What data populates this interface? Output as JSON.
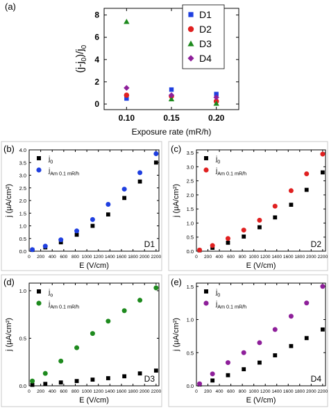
{
  "chart_data": [
    {
      "panel": "(a)",
      "type": "scatter",
      "xlabel": "Exposure rate (mR/h)",
      "ylabel": "(j-j0)/j0",
      "xlim": [
        0.075,
        0.225
      ],
      "ylim": [
        -0.5,
        8.6
      ],
      "xticks": [
        "0.10",
        "0.15",
        "0.20"
      ],
      "xtick_values": [
        0.1,
        0.15,
        0.2
      ],
      "yticks": [
        "0",
        "2",
        "4",
        "6",
        "8"
      ],
      "ytick_values": [
        0,
        2,
        4,
        6,
        8
      ],
      "legend_position": "top-right",
      "x": [
        0.1,
        0.15,
        0.2
      ],
      "series": [
        {
          "name": "D1",
          "marker": "square",
          "color": "#1f3fe0",
          "values": [
            0.5,
            1.3,
            0.9
          ]
        },
        {
          "name": "D2",
          "marker": "circle",
          "color": "#e02020",
          "values": [
            0.8,
            0.7,
            0.25
          ]
        },
        {
          "name": "D3",
          "marker": "triangle",
          "color": "#1e8a1e",
          "values": [
            7.4,
            0.45,
            0.05
          ]
        },
        {
          "name": "D4",
          "marker": "diamond",
          "color": "#8e1f9a",
          "values": [
            1.45,
            0.8,
            0.6
          ]
        }
      ]
    },
    {
      "panel": "(b)",
      "type": "scatter",
      "tag": "D1",
      "xlabel": "E (V/cm)",
      "ylabel": "j (µA/cm²)",
      "xlim": [
        0,
        2250
      ],
      "ylim": [
        0,
        4.0
      ],
      "xticks": [
        "0",
        "200",
        "400",
        "600",
        "800",
        "1000",
        "1200",
        "1400",
        "1600",
        "1800",
        "2000",
        "2200"
      ],
      "xtick_values": [
        0,
        200,
        400,
        600,
        800,
        1000,
        1200,
        1400,
        1600,
        1800,
        2000,
        2200
      ],
      "yticks": [
        "0.0",
        "0.5",
        "1.0",
        "1.5",
        "2.0",
        "2.5",
        "3.0",
        "3.5",
        "4.0"
      ],
      "ytick_values": [
        0,
        0.5,
        1.0,
        1.5,
        2.0,
        2.5,
        3.0,
        3.5,
        4.0
      ],
      "legend_position": "top-left",
      "x": [
        55,
        280,
        550,
        825,
        1100,
        1370,
        1650,
        1920,
        2200
      ],
      "series": [
        {
          "name": "j0",
          "marker": "square",
          "color": "#000000",
          "values": [
            0.05,
            0.15,
            0.35,
            0.65,
            1.0,
            1.45,
            2.1,
            2.75,
            3.5
          ]
        },
        {
          "name": "jAm 0.1 mR/h",
          "marker": "circle",
          "color": "#1f3fe0",
          "values": [
            0.06,
            0.2,
            0.45,
            0.8,
            1.25,
            1.85,
            2.45,
            3.1,
            3.85
          ]
        }
      ]
    },
    {
      "panel": "(c)",
      "type": "scatter",
      "tag": "D2",
      "xlabel": "E (V/cm)",
      "ylabel": "j (µA/cm²)",
      "xlim": [
        0,
        2250
      ],
      "ylim": [
        0,
        3.6
      ],
      "xticks": [
        "0",
        "200",
        "400",
        "600",
        "800",
        "1000",
        "1200",
        "1400",
        "1600",
        "1800",
        "2000",
        "2200"
      ],
      "xtick_values": [
        0,
        200,
        400,
        600,
        800,
        1000,
        1200,
        1400,
        1600,
        1800,
        2000,
        2200
      ],
      "yticks": [
        "0.0",
        "0.5",
        "1.0",
        "1.5",
        "2.0",
        "2.5",
        "3.0",
        "3.5"
      ],
      "ytick_values": [
        0,
        0.5,
        1.0,
        1.5,
        2.0,
        2.5,
        3.0,
        3.5
      ],
      "legend_position": "top-left",
      "x": [
        55,
        280,
        550,
        825,
        1100,
        1370,
        1650,
        1920,
        2200
      ],
      "series": [
        {
          "name": "j0",
          "marker": "square",
          "color": "#000000",
          "values": [
            0.03,
            0.12,
            0.3,
            0.52,
            0.85,
            1.2,
            1.65,
            2.18,
            2.8
          ]
        },
        {
          "name": "jAm 0.1 mR/h",
          "marker": "circle",
          "color": "#e02020",
          "values": [
            0.04,
            0.2,
            0.45,
            0.75,
            1.1,
            1.6,
            2.15,
            2.75,
            3.45
          ]
        }
      ]
    },
    {
      "panel": "(d)",
      "type": "scatter",
      "tag": "D3",
      "xlabel": "E (V/cm)",
      "ylabel": "j (µA/cm²)",
      "xlim": [
        0,
        2250
      ],
      "ylim": [
        0,
        1.08
      ],
      "xticks": [
        "0",
        "200",
        "400",
        "600",
        "800",
        "1000",
        "1200",
        "1400",
        "1600",
        "1800",
        "2000",
        "2200"
      ],
      "xtick_values": [
        0,
        200,
        400,
        600,
        800,
        1000,
        1200,
        1400,
        1600,
        1800,
        2000,
        2200
      ],
      "yticks": [
        "0.0",
        "0.5",
        "1.0"
      ],
      "ytick_values": [
        0,
        0.5,
        1.0
      ],
      "legend_position": "top-left",
      "x": [
        55,
        280,
        550,
        825,
        1100,
        1370,
        1650,
        1920,
        2200
      ],
      "series": [
        {
          "name": "jo",
          "marker": "square",
          "color": "#000000",
          "values": [
            0.01,
            0.02,
            0.035,
            0.05,
            0.065,
            0.08,
            0.1,
            0.13,
            0.16
          ]
        },
        {
          "name": "jAm 0.1 mR/h",
          "marker": "circle",
          "color": "#1e8a1e",
          "values": [
            0.05,
            0.13,
            0.26,
            0.4,
            0.55,
            0.68,
            0.79,
            0.9,
            1.03
          ]
        }
      ]
    },
    {
      "panel": "(e)",
      "type": "scatter",
      "tag": "D4",
      "xlabel": "E (V/cm)",
      "ylabel": "j (µA/cm²)",
      "xlim": [
        0,
        2250
      ],
      "ylim": [
        0,
        1.55
      ],
      "xticks": [
        "0",
        "200",
        "400",
        "600",
        "800",
        "1000",
        "1200",
        "1400",
        "1600",
        "1800",
        "2000",
        "2200"
      ],
      "xtick_values": [
        0,
        200,
        400,
        600,
        800,
        1000,
        1200,
        1400,
        1600,
        1800,
        2000,
        2200
      ],
      "yticks": [
        "0.0",
        "0.5",
        "1.0",
        "1.5"
      ],
      "ytick_values": [
        0,
        0.5,
        1.0,
        1.5
      ],
      "legend_position": "top-left",
      "x": [
        55,
        280,
        550,
        825,
        1100,
        1370,
        1650,
        1920,
        2200
      ],
      "series": [
        {
          "name": "j0",
          "marker": "square",
          "color": "#000000",
          "values": [
            0.02,
            0.08,
            0.16,
            0.25,
            0.35,
            0.46,
            0.6,
            0.72,
            0.85
          ]
        },
        {
          "name": "jAm 0.1 mR/h",
          "marker": "circle",
          "color": "#8e1f9a",
          "values": [
            0.03,
            0.18,
            0.35,
            0.5,
            0.65,
            0.85,
            1.05,
            1.25,
            1.5
          ]
        }
      ]
    }
  ]
}
